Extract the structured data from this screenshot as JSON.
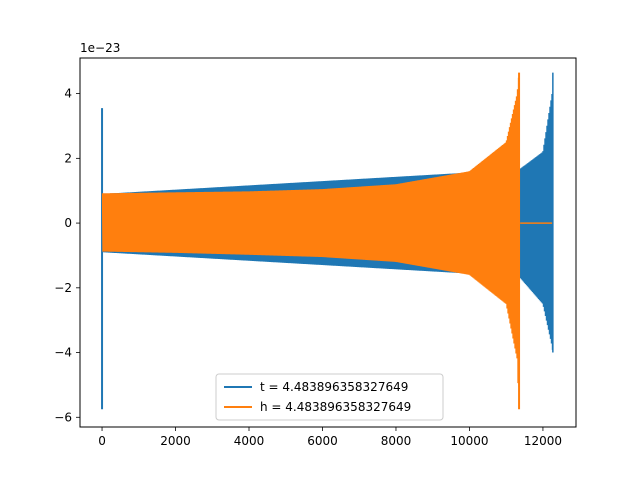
{
  "chart_data": {
    "type": "line",
    "title": "",
    "xlabel": "",
    "ylabel": "",
    "y_offset_text": "1e−23",
    "y_scale_factor": 1e-23,
    "xlim": [
      -600,
      12900
    ],
    "ylim": [
      -6.3,
      5.1
    ],
    "x_ticks": [
      0,
      2000,
      4000,
      6000,
      8000,
      10000,
      12000
    ],
    "x_tick_labels": [
      "0",
      "2000",
      "4000",
      "6000",
      "8000",
      "10000",
      "12000"
    ],
    "y_ticks": [
      -6,
      -4,
      -2,
      0,
      2,
      4
    ],
    "y_tick_labels": [
      "−6",
      "−4",
      "−2",
      "0",
      "2",
      "4"
    ],
    "grid": false,
    "legend_position": "lower-center",
    "series": [
      {
        "name": "t = 4.483896358327649",
        "color": "#1f77b4",
        "description_points": {
          "x": [
            0,
            0,
            0,
            11350,
            11350,
            12000,
            12250,
            12270,
            12270
          ],
          "y_upper": [
            3.55,
            0.9,
            0.9,
            1.65,
            1.65,
            2.2,
            4.0,
            4.65,
            0.0
          ],
          "y_lower": [
            -5.75,
            -0.9,
            -0.9,
            -1.65,
            -1.65,
            -2.5,
            -3.8,
            -4.0,
            0.0
          ]
        }
      },
      {
        "name": "h = 4.483896358327649",
        "color": "#ff7f0e",
        "description_points": {
          "x": [
            0,
            0,
            2000,
            4000,
            6000,
            8000,
            10000,
            11000,
            11300,
            11350,
            11360,
            11400,
            12270
          ],
          "y_upper": [
            0.9,
            0.92,
            0.95,
            0.98,
            1.05,
            1.2,
            1.6,
            2.5,
            4.0,
            4.65,
            0.0,
            0.0,
            0.0
          ],
          "y_lower": [
            -0.9,
            -0.88,
            -0.92,
            -0.98,
            -1.05,
            -1.2,
            -1.6,
            -2.5,
            -4.2,
            -5.75,
            0.0,
            0.0,
            0.0
          ]
        }
      }
    ]
  }
}
